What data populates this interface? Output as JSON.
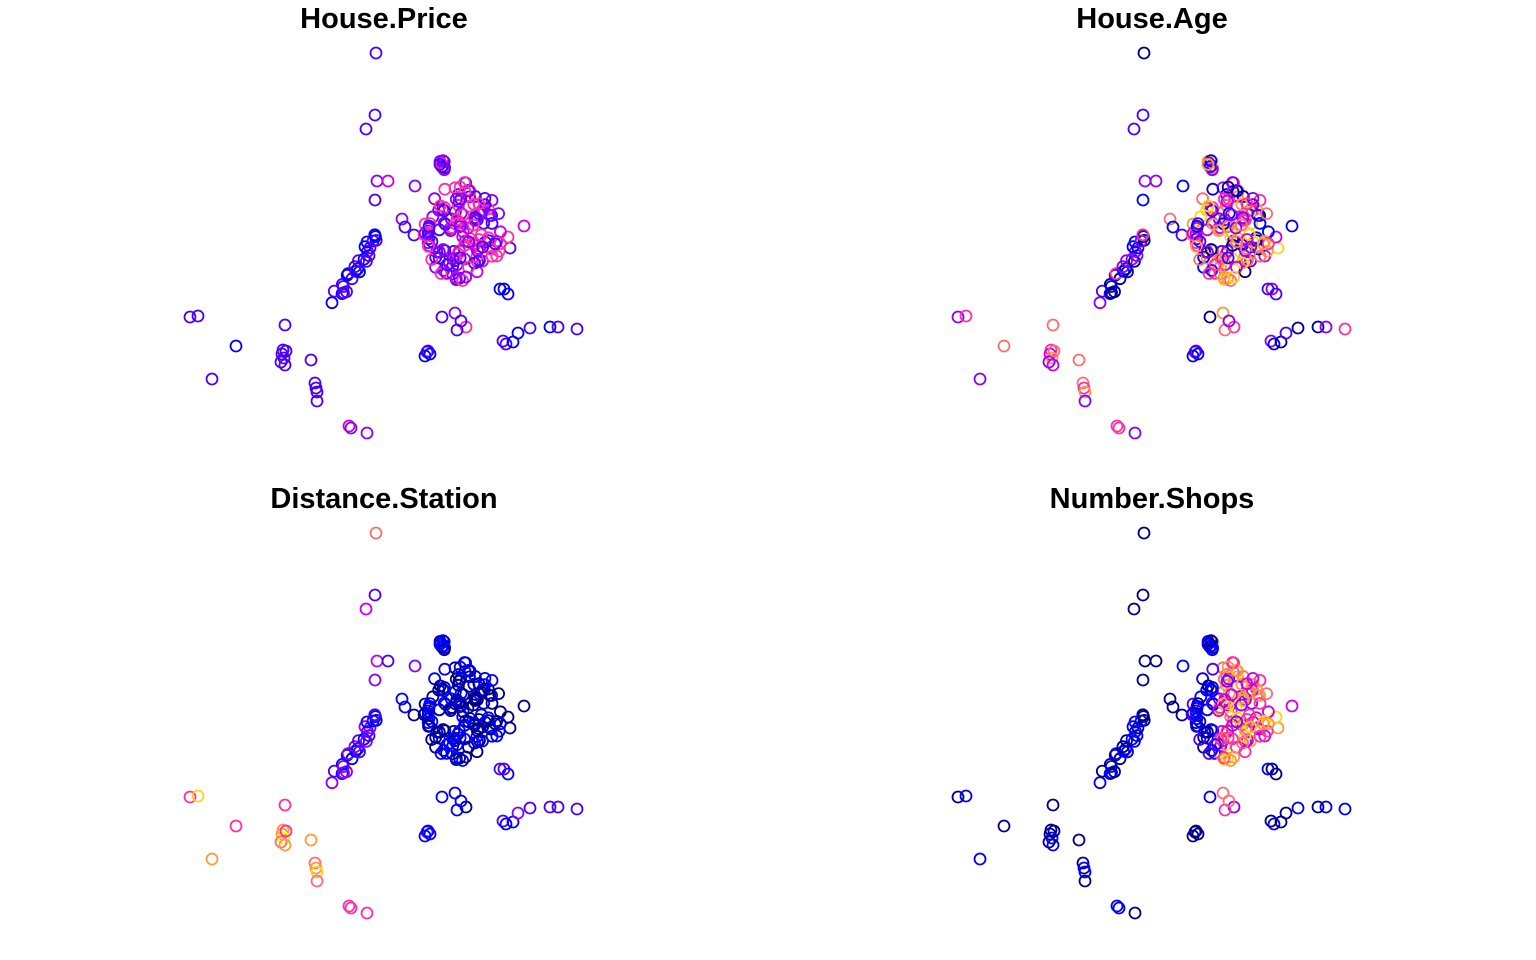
{
  "chart_data": [
    {
      "type": "scatter",
      "title": "House.Price",
      "xlabel": "",
      "ylabel": "",
      "axes": "none",
      "grid": false,
      "legend": "none"
    },
    {
      "type": "scatter",
      "title": "House.Age",
      "xlabel": "",
      "ylabel": "",
      "axes": "none",
      "grid": false,
      "legend": "none"
    },
    {
      "type": "scatter",
      "title": "Distance.Station",
      "xlabel": "",
      "ylabel": "",
      "axes": "none",
      "grid": false,
      "legend": "none"
    },
    {
      "type": "scatter",
      "title": "Number.Shops",
      "xlabel": "",
      "ylabel": "",
      "axes": "none",
      "grid": false,
      "legend": "none"
    }
  ],
  "marker": "open-circle",
  "color_scale": [
    "#00008B",
    "#0000FF",
    "#4B00FF",
    "#8A00FF",
    "#CC00E6",
    "#FF2FA8",
    "#FF6E6E",
    "#FF9A3C",
    "#FFD21A",
    "#FFFF00"
  ]
}
